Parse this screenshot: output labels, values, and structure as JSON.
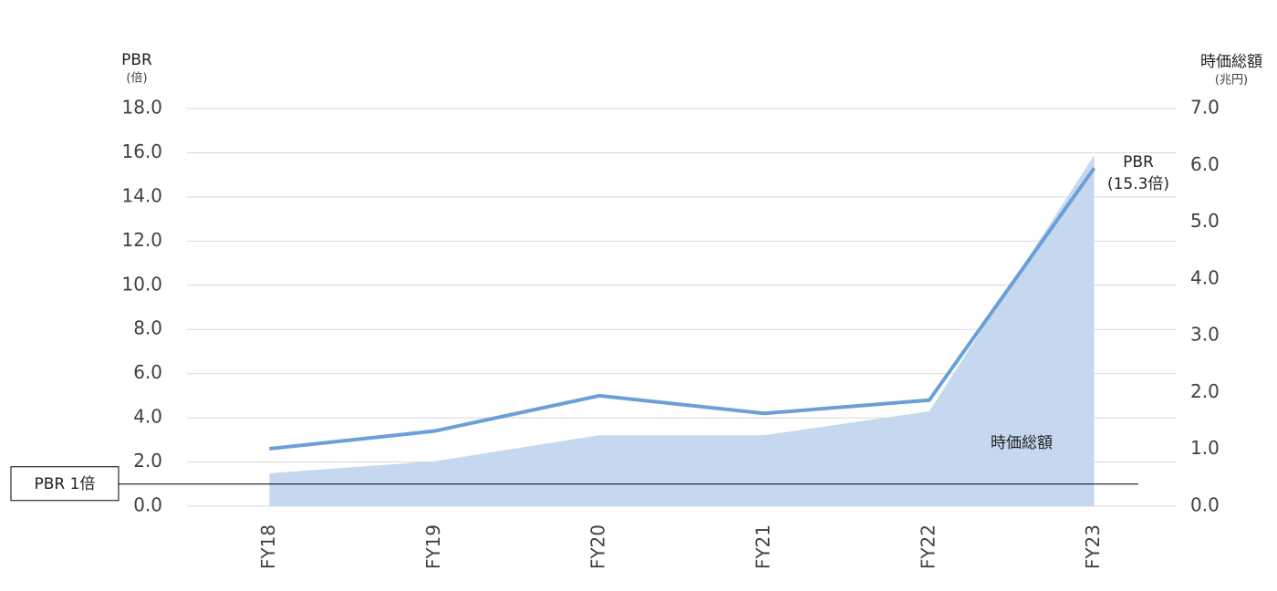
{
  "chart_data": {
    "type": "line-area",
    "y_title": "PBR",
    "y_unit": "(倍)",
    "y2_title": "時価総額",
    "y2_unit": "(兆円)",
    "categories": [
      "FY18",
      "FY19",
      "FY20",
      "FY21",
      "FY22",
      "FY23"
    ],
    "series": [
      {
        "name": "時価総額",
        "kind": "area",
        "axis": "y2",
        "color": "#c5d8ef",
        "values": [
          0.58,
          0.79,
          1.25,
          1.25,
          1.67,
          6.18
        ]
      },
      {
        "name": "PBR",
        "kind": "line",
        "axis": "y",
        "color": "#6a9fd8",
        "values": [
          2.6,
          3.4,
          5.0,
          4.2,
          4.8,
          15.3
        ]
      }
    ],
    "annotations": [
      {
        "text": "PBR",
        "series": 1
      },
      {
        "text": "(15.3倍)",
        "series": 1
      }
    ],
    "reference_line": {
      "value": 1,
      "label": "PBR 1倍"
    },
    "ylim": [
      0,
      18
    ],
    "yticks": [
      {
        "value": 0,
        "label": "0.0"
      },
      {
        "value": 2,
        "label": "2.0"
      },
      {
        "value": 4,
        "label": "4.0"
      },
      {
        "value": 6,
        "label": "6.0"
      },
      {
        "value": 8,
        "label": "8.0"
      },
      {
        "value": 10,
        "label": "10.0"
      },
      {
        "value": 12,
        "label": "12.0"
      },
      {
        "value": 14,
        "label": "14.0"
      },
      {
        "value": 16,
        "label": "16.0"
      },
      {
        "value": 18,
        "label": "18.0"
      }
    ],
    "y2lim": [
      0,
      7
    ],
    "y2ticks": [
      {
        "value": 0,
        "label": "0.0"
      },
      {
        "value": 1,
        "label": "1.0"
      },
      {
        "value": 2,
        "label": "2.0"
      },
      {
        "value": 3,
        "label": "3.0"
      },
      {
        "value": 4,
        "label": "4.0"
      },
      {
        "value": 5,
        "label": "5.0"
      },
      {
        "value": 6,
        "label": "6.0"
      },
      {
        "value": 7,
        "label": "7.0"
      }
    ],
    "grid": true
  }
}
